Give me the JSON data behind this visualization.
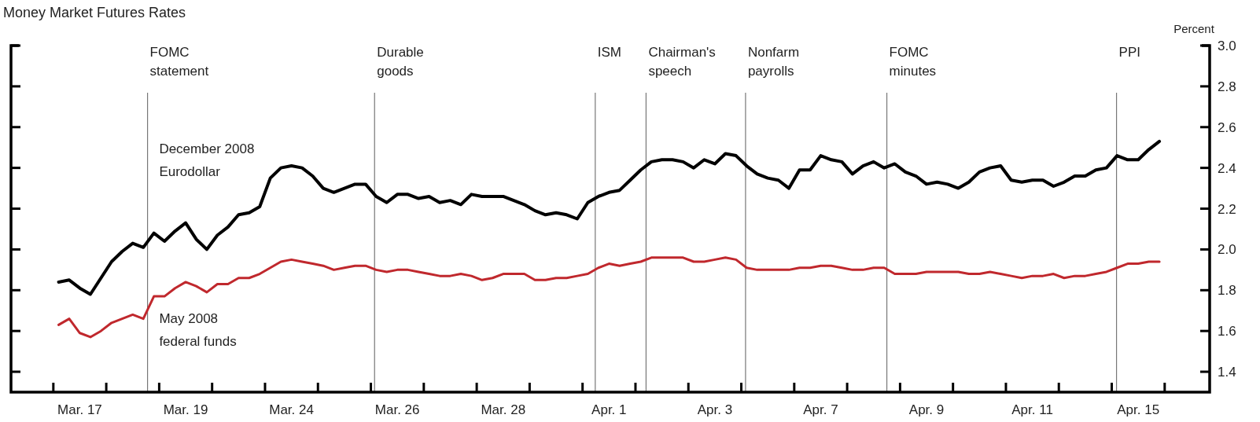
{
  "chart_data": {
    "type": "line",
    "title": "Money Market Futures Rates",
    "ylabel": "Percent",
    "categories": [
      null,
      null,
      "Mar. 17",
      null,
      null,
      null,
      null,
      null,
      null,
      null,
      null,
      null,
      "Mar. 19",
      null,
      null,
      null,
      null,
      null,
      null,
      null,
      null,
      null,
      "Mar. 24",
      null,
      null,
      null,
      null,
      null,
      null,
      null,
      null,
      null,
      "Mar. 26",
      null,
      null,
      null,
      null,
      null,
      null,
      null,
      null,
      null,
      "Mar. 28",
      null,
      null,
      null,
      null,
      null,
      null,
      null,
      null,
      null,
      "Apr. 1",
      null,
      null,
      null,
      null,
      null,
      null,
      null,
      null,
      null,
      "Apr. 3",
      null,
      null,
      null,
      null,
      null,
      null,
      null,
      null,
      null,
      "Apr. 7",
      null,
      null,
      null,
      null,
      null,
      null,
      null,
      null,
      null,
      "Apr. 9",
      null,
      null,
      null,
      null,
      null,
      null,
      null,
      null,
      null,
      "Apr. 11",
      null,
      null,
      null,
      null,
      null,
      null,
      null,
      null,
      null,
      "Apr. 15",
      null,
      null
    ],
    "ylim": [
      1.3,
      3.0
    ],
    "yticks": [
      1.4,
      1.6,
      1.8,
      {
        "value": 2,
        "label": "2.0"
      },
      2.2,
      2.4,
      2.6,
      2.8,
      {
        "value": 3,
        "label": "3.0"
      }
    ],
    "marker": "none",
    "line_style": "solid",
    "series": [
      {
        "name": "December 2008 Eurodollar",
        "color": "#000000",
        "values": [
          1.84,
          1.85,
          1.81,
          1.78,
          1.86,
          1.94,
          1.99,
          2.03,
          2.01,
          2.08,
          2.04,
          2.09,
          2.13,
          2.05,
          2.0,
          2.07,
          2.11,
          2.17,
          2.18,
          2.21,
          2.35,
          2.4,
          2.41,
          2.4,
          2.36,
          2.3,
          2.28,
          2.3,
          2.32,
          2.32,
          2.26,
          2.23,
          2.27,
          2.27,
          2.25,
          2.26,
          2.23,
          2.24,
          2.22,
          2.27,
          2.26,
          2.26,
          2.26,
          2.24,
          2.22,
          2.19,
          2.17,
          2.18,
          2.17,
          2.15,
          2.23,
          2.26,
          2.28,
          2.29,
          2.34,
          2.39,
          2.43,
          2.44,
          2.44,
          2.43,
          2.4,
          2.44,
          2.42,
          2.47,
          2.46,
          2.41,
          2.37,
          2.35,
          2.34,
          2.3,
          2.39,
          2.39,
          2.46,
          2.44,
          2.43,
          2.37,
          2.41,
          2.43,
          2.4,
          2.42,
          2.38,
          2.36,
          2.32,
          2.33,
          2.32,
          2.3,
          2.33,
          2.38,
          2.4,
          2.41,
          2.34,
          2.33,
          2.34,
          2.34,
          2.31,
          2.33,
          2.36,
          2.36,
          2.39,
          2.4,
          2.46,
          2.44,
          2.44,
          2.49,
          2.53
        ]
      },
      {
        "name": "May 2008 federal funds",
        "color": "#c0282d",
        "values": [
          1.63,
          1.66,
          1.59,
          1.57,
          1.6,
          1.64,
          1.66,
          1.68,
          1.66,
          1.77,
          1.77,
          1.81,
          1.84,
          1.82,
          1.79,
          1.83,
          1.83,
          1.86,
          1.86,
          1.88,
          1.91,
          1.94,
          1.95,
          1.94,
          1.93,
          1.92,
          1.9,
          1.91,
          1.92,
          1.92,
          1.9,
          1.89,
          1.9,
          1.9,
          1.89,
          1.88,
          1.87,
          1.87,
          1.88,
          1.87,
          1.85,
          1.86,
          1.88,
          1.88,
          1.88,
          1.85,
          1.85,
          1.86,
          1.86,
          1.87,
          1.88,
          1.91,
          1.93,
          1.92,
          1.93,
          1.94,
          1.96,
          1.96,
          1.96,
          1.96,
          1.94,
          1.94,
          1.95,
          1.96,
          1.95,
          1.91,
          1.9,
          1.9,
          1.9,
          1.9,
          1.91,
          1.91,
          1.92,
          1.92,
          1.91,
          1.9,
          1.9,
          1.91,
          1.91,
          1.88,
          1.88,
          1.88,
          1.89,
          1.89,
          1.89,
          1.89,
          1.88,
          1.88,
          1.89,
          1.88,
          1.87,
          1.86,
          1.87,
          1.87,
          1.88,
          1.86,
          1.87,
          1.87,
          1.88,
          1.89,
          1.91,
          1.93,
          1.93,
          1.94,
          1.94
        ]
      }
    ],
    "annotations": [
      "FOMC statement",
      "Durable goods",
      "ISM",
      "Chairman's speech",
      "Nonfarm payrolls",
      "FOMC minutes",
      "PPI"
    ]
  }
}
